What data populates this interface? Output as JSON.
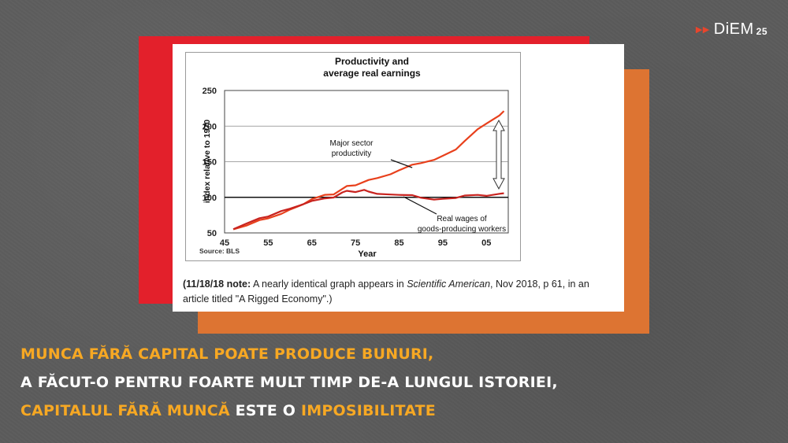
{
  "brand": {
    "name": "DiEM",
    "number": "25"
  },
  "chart_data": {
    "type": "line",
    "title": [
      "Productivity and",
      "average real earnings"
    ],
    "ylabel": "index relative to 1970",
    "xlabel": "Year",
    "source": "Source: BLS",
    "xlim": [
      1945,
      2010
    ],
    "ylim": [
      50,
      250
    ],
    "x_tick_labels": [
      "45",
      "55",
      "65",
      "75",
      "85",
      "95",
      "05"
    ],
    "y_ticks": [
      50,
      100,
      150,
      200,
      250
    ],
    "grid": true,
    "series": [
      {
        "name": "Major sector productivity",
        "label_lines": [
          "Major sector",
          "productivity"
        ],
        "color": "#e8401c",
        "x": [
          1947,
          1950,
          1953,
          1955,
          1958,
          1960,
          1963,
          1965,
          1968,
          1970,
          1973,
          1975,
          1978,
          1980,
          1983,
          1985,
          1988,
          1990,
          1993,
          1995,
          1998,
          2000,
          2003,
          2005,
          2008,
          2009
        ],
        "y": [
          55,
          61,
          67,
          71,
          77,
          82,
          91,
          97,
          103,
          105,
          115,
          117,
          125,
          126,
          133,
          138,
          145,
          149,
          152,
          158,
          168,
          178,
          196,
          204,
          214,
          222
        ]
      },
      {
        "name": "Real wages of goods-producing workers",
        "label_lines": [
          "Real wages of",
          "goods-producing workers"
        ],
        "color": "#c8231f",
        "x": [
          1947,
          1950,
          1953,
          1955,
          1958,
          1960,
          1963,
          1965,
          1968,
          1970,
          1972,
          1973,
          1975,
          1977,
          1978,
          1980,
          1983,
          1985,
          1988,
          1990,
          1993,
          1995,
          1998,
          2000,
          2003,
          2005,
          2008,
          2009
        ],
        "y": [
          56,
          63,
          70,
          74,
          80,
          84,
          91,
          94,
          99,
          100,
          106,
          110,
          107,
          110,
          109,
          104,
          104,
          104,
          102,
          100,
          97,
          97,
          100,
          102,
          103,
          103,
          104,
          106
        ]
      }
    ],
    "baseline": 100
  },
  "note": {
    "date": "(11/18/18 note:",
    "text1": " A nearly identical graph appears in ",
    "journal": "Scientific American",
    "text2": ", Nov 2018, p 61, in an article titled \"A Rigged Economy\".)"
  },
  "headline": {
    "line1": "MUNCA FĂRĂ CAPITAL POATE PRODUCE BUNURI,",
    "line2": "A FĂCUT-O PENTRU FOARTE MULT TIMP DE-A LUNGUL ISTORIEI,",
    "line3a": "CAPITALUL FĂRĂ MUNCĂ",
    "line3b": " ESTE O ",
    "line3c": "IMPOSIBILITATE"
  }
}
